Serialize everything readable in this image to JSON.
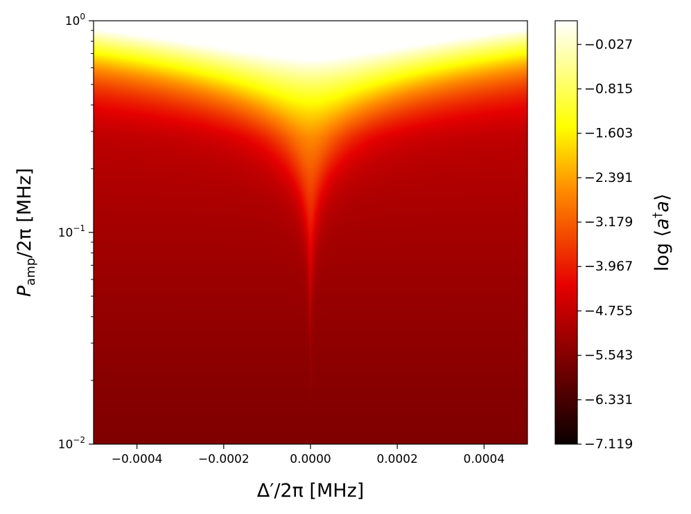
{
  "chart_data": {
    "type": "heatmap",
    "title": "",
    "xlabel": "Δ′/2π [MHz]",
    "ylabel_main": "P",
    "ylabel_sub": "amp",
    "ylabel_rest": "/2π [MHz]",
    "xlim": [
      -0.0005,
      0.0005
    ],
    "ylim": [
      0.01,
      1
    ],
    "yscale": "log",
    "grid": false,
    "x_ticks": [
      {
        "value": -0.0004,
        "label": "−0.0004"
      },
      {
        "value": -0.0002,
        "label": "−0.0002"
      },
      {
        "value": 0.0,
        "label": "0.0000"
      },
      {
        "value": 0.0002,
        "label": "0.0002"
      },
      {
        "value": 0.0004,
        "label": "0.0004"
      }
    ],
    "y_ticks": [
      {
        "value": 1,
        "base": "10",
        "exp": "0"
      },
      {
        "value": 0.1,
        "base": "10",
        "exp": "−1"
      },
      {
        "value": 0.01,
        "base": "10",
        "exp": "−2"
      }
    ],
    "colorbar": {
      "colormap": "hot",
      "label": "log ⟨a†a⟩",
      "label_prefix": "log ⟨",
      "label_a1": "a",
      "label_dagger": "†",
      "label_a2": "a",
      "label_suffix": "⟩",
      "range": [
        -7.119,
        0.394
      ],
      "ticks": [
        -0.027,
        -0.815,
        -1.603,
        -2.391,
        -3.179,
        -3.967,
        -4.755,
        -5.543,
        -6.331,
        -7.119
      ],
      "tick_labels": [
        "−0.027",
        "−0.815",
        "−1.603",
        "−2.391",
        "−3.179",
        "−3.967",
        "−4.755",
        "−5.543",
        "−6.331",
        "−7.119"
      ]
    },
    "colors": {
      "hot_stops": [
        "#0a0000",
        "#e60000",
        "#ff8c00",
        "#ffff00",
        "#ffffff"
      ]
    }
  }
}
